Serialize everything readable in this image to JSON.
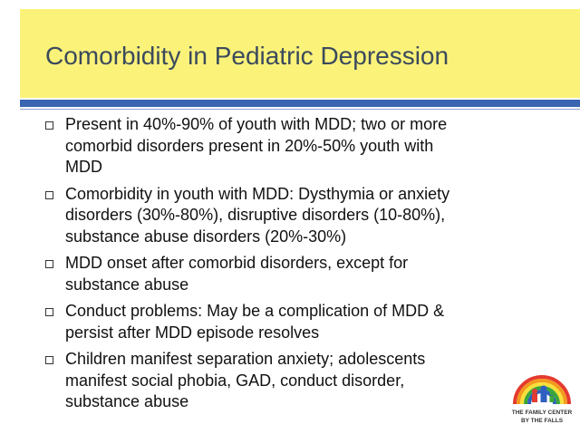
{
  "slide": {
    "title": "Comorbidity in Pediatric Depression",
    "bullets": [
      [
        "Present in 40%-90% of youth with MDD; two or more",
        "comorbid disorders present in 20%-50% youth with",
        "MDD"
      ],
      [
        "Comorbidity in youth with MDD: Dysthymia  or anxiety",
        "disorders (30%-80%), disruptive disorders (10-80%),",
        "substance abuse disorders (20%-30%)"
      ],
      [
        "MDD onset after comorbid disorders, except for",
        "substance abuse"
      ],
      [
        "Conduct problems: May be a complication of MDD &",
        "persist after MDD episode resolves"
      ],
      [
        "Children manifest separation anxiety; adolescents",
        "manifest social phobia, GAD, conduct disorder,",
        "substance abuse"
      ]
    ],
    "logo": [
      "THE FAMILY CENTER",
      "BY THE FALLS"
    ]
  }
}
